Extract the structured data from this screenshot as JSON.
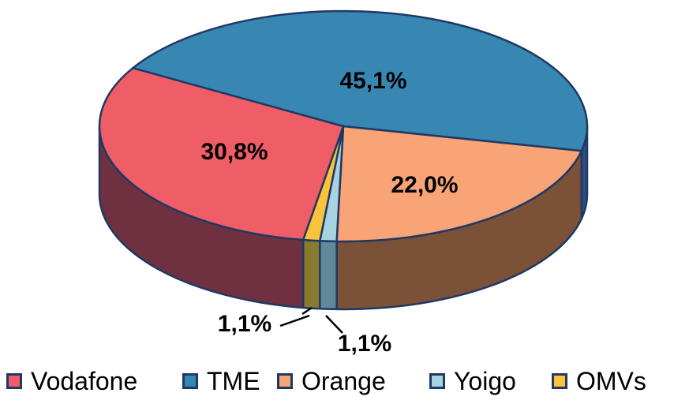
{
  "chart_data": {
    "type": "pie",
    "title": "",
    "effect": "3d",
    "slices": [
      {
        "name": "Vodafone",
        "value": 30.8,
        "label": "30,8%",
        "color": "#EF5D66",
        "side_color": "#6F3140"
      },
      {
        "name": "TME",
        "value": 45.1,
        "label": "45,1%",
        "color": "#3887B2",
        "side_color": "#2A4E7E"
      },
      {
        "name": "Orange",
        "value": 22.0,
        "label": "22,0%",
        "color": "#F9A476",
        "side_color": "#7B5138"
      },
      {
        "name": "Yoigo",
        "value": 1.1,
        "label": "1,1%",
        "color": "#A7D2E0",
        "side_color": "#5E8A99"
      },
      {
        "name": "OMVs",
        "value": 1.1,
        "label": "1,1%",
        "color": "#FBC33A",
        "side_color": "#8A7A2E"
      }
    ],
    "legend": [
      "Vodafone",
      "TME",
      "Orange",
      "Yoigo",
      "OMVs"
    ],
    "legend_position": "bottom",
    "draw_order": [
      "TME",
      "Orange",
      "Yoigo",
      "OMVs",
      "Vodafone"
    ],
    "start_angle_deg": 150,
    "clockwise": true,
    "outline_color": "#1F3864",
    "label_color": "#000000"
  }
}
